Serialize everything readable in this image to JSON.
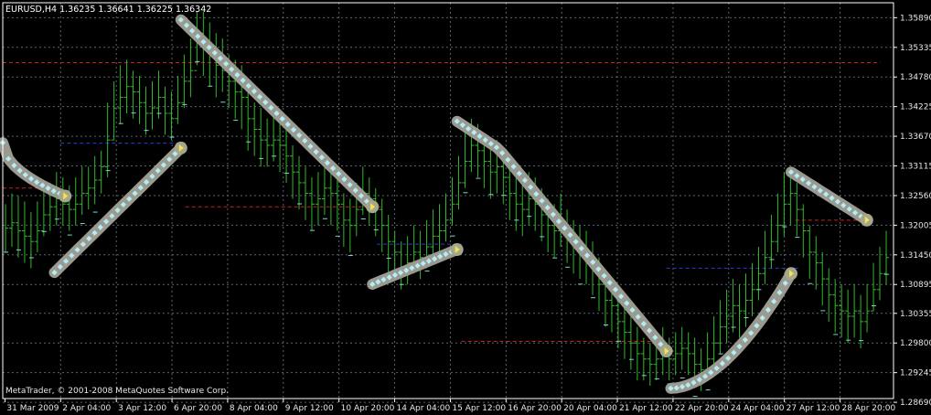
{
  "window": {
    "symbol_line": "EURUSD,H4  1.36235 1.36641 1.36225 1.36342",
    "copyright": "MetaTrader, © 2001-2008 MetaQuotes Software Corp."
  },
  "colors": {
    "background": "#000000",
    "grid": "#5a6470",
    "candles": "#31b92a",
    "frame": "#ffffff",
    "text": "#e8e8e8",
    "ma_dash": "#7fd6d4",
    "level_red": "#d21d1d",
    "level_blue": "#2b3bd8",
    "curve_body": "#9a9a90",
    "curve_dot": "#b3ecf5"
  },
  "chart_data": {
    "type": "candlestick",
    "symbol": "EURUSD",
    "timeframe": "H4",
    "ohlc_latest": {
      "open": 1.36235,
      "high": 1.36641,
      "low": 1.36225,
      "close": 1.36342
    },
    "ylim": [
      1.2876,
      1.3617
    ],
    "y_ticks": [
      "1.35890",
      "1.35335",
      "1.34780",
      "1.34225",
      "1.33670",
      "1.33115",
      "1.32560",
      "1.32005",
      "1.31450",
      "1.30895",
      "1.30355",
      "1.29800",
      "1.29245",
      "1.28690"
    ],
    "x_ticks": [
      "31 Mar 2009",
      "2 Apr 04:00",
      "3 Apr 12:00",
      "6 Apr 20:00",
      "8 Apr 04:00",
      "9 Apr 12:00",
      "10 Apr 20:00",
      "14 Apr 04:00",
      "15 Apr 12:00",
      "16 Apr 20:00",
      "20 Apr 04:00",
      "21 Apr 12:00",
      "22 Apr 20:00",
      "24 Apr 04:00",
      "27 Apr 12:00",
      "28 Apr 20:00"
    ],
    "grid": true,
    "bars": [
      {
        "c": 1.3195,
        "h": 1.324,
        "l": 1.315
      },
      {
        "c": 1.3205,
        "h": 1.326,
        "l": 1.316
      },
      {
        "c": 1.319,
        "h": 1.3255,
        "l": 1.314
      },
      {
        "c": 1.318,
        "h": 1.3245,
        "l": 1.313
      },
      {
        "c": 1.317,
        "h": 1.3225,
        "l": 1.312
      },
      {
        "c": 1.319,
        "h": 1.3245,
        "l": 1.315
      },
      {
        "c": 1.322,
        "h": 1.3265,
        "l": 1.318
      },
      {
        "c": 1.3235,
        "h": 1.328,
        "l": 1.319
      },
      {
        "c": 1.325,
        "h": 1.33,
        "l": 1.32
      },
      {
        "c": 1.324,
        "h": 1.329,
        "l": 1.32
      },
      {
        "c": 1.323,
        "h": 1.3275,
        "l": 1.319
      },
      {
        "c": 1.324,
        "h": 1.329,
        "l": 1.32
      },
      {
        "c": 1.326,
        "h": 1.331,
        "l": 1.322
      },
      {
        "c": 1.327,
        "h": 1.331,
        "l": 1.323
      },
      {
        "c": 1.3285,
        "h": 1.333,
        "l": 1.324
      },
      {
        "c": 1.331,
        "h": 1.334,
        "l": 1.326
      },
      {
        "c": 1.336,
        "h": 1.343,
        "l": 1.329
      },
      {
        "c": 1.342,
        "h": 1.347,
        "l": 1.336
      },
      {
        "c": 1.344,
        "h": 1.35,
        "l": 1.339
      },
      {
        "c": 1.346,
        "h": 1.351,
        "l": 1.341
      },
      {
        "c": 1.345,
        "h": 1.349,
        "l": 1.34
      },
      {
        "c": 1.343,
        "h": 1.348,
        "l": 1.339
      },
      {
        "c": 1.341,
        "h": 1.346,
        "l": 1.337
      },
      {
        "c": 1.342,
        "h": 1.347,
        "l": 1.338
      },
      {
        "c": 1.344,
        "h": 1.349,
        "l": 1.34
      },
      {
        "c": 1.341,
        "h": 1.346,
        "l": 1.337
      },
      {
        "c": 1.34,
        "h": 1.345,
        "l": 1.336
      },
      {
        "c": 1.343,
        "h": 1.348,
        "l": 1.339
      },
      {
        "c": 1.347,
        "h": 1.352,
        "l": 1.342
      },
      {
        "c": 1.349,
        "h": 1.355,
        "l": 1.344
      },
      {
        "c": 1.356,
        "h": 1.36,
        "l": 1.35
      },
      {
        "c": 1.354,
        "h": 1.36,
        "l": 1.348
      },
      {
        "c": 1.352,
        "h": 1.358,
        "l": 1.346
      },
      {
        "c": 1.35,
        "h": 1.356,
        "l": 1.344
      },
      {
        "c": 1.349,
        "h": 1.355,
        "l": 1.345
      },
      {
        "c": 1.347,
        "h": 1.352,
        "l": 1.342
      },
      {
        "c": 1.345,
        "h": 1.351,
        "l": 1.34
      },
      {
        "c": 1.344,
        "h": 1.35,
        "l": 1.338
      },
      {
        "c": 1.34,
        "h": 1.346,
        "l": 1.334
      },
      {
        "c": 1.338,
        "h": 1.343,
        "l": 1.333
      },
      {
        "c": 1.336,
        "h": 1.342,
        "l": 1.331
      },
      {
        "c": 1.335,
        "h": 1.34,
        "l": 1.331
      },
      {
        "c": 1.336,
        "h": 1.342,
        "l": 1.332
      },
      {
        "c": 1.335,
        "h": 1.341,
        "l": 1.33
      },
      {
        "c": 1.333,
        "h": 1.338,
        "l": 1.328
      },
      {
        "c": 1.33,
        "h": 1.335,
        "l": 1.325
      },
      {
        "c": 1.328,
        "h": 1.333,
        "l": 1.323
      },
      {
        "c": 1.326,
        "h": 1.331,
        "l": 1.321
      },
      {
        "c": 1.324,
        "h": 1.329,
        "l": 1.319
      },
      {
        "c": 1.325,
        "h": 1.33,
        "l": 1.32
      },
      {
        "c": 1.327,
        "h": 1.331,
        "l": 1.322
      },
      {
        "c": 1.326,
        "h": 1.33,
        "l": 1.32
      },
      {
        "c": 1.324,
        "h": 1.329,
        "l": 1.319
      },
      {
        "c": 1.321,
        "h": 1.326,
        "l": 1.316
      },
      {
        "c": 1.32,
        "h": 1.325,
        "l": 1.315
      },
      {
        "c": 1.323,
        "h": 1.328,
        "l": 1.318
      },
      {
        "c": 1.326,
        "h": 1.331,
        "l": 1.322
      },
      {
        "c": 1.325,
        "h": 1.329,
        "l": 1.32
      },
      {
        "c": 1.323,
        "h": 1.327,
        "l": 1.318
      },
      {
        "c": 1.32,
        "h": 1.325,
        "l": 1.315
      },
      {
        "c": 1.317,
        "h": 1.322,
        "l": 1.311
      },
      {
        "c": 1.315,
        "h": 1.319,
        "l": 1.31
      },
      {
        "c": 1.312,
        "h": 1.317,
        "l": 1.308
      },
      {
        "c": 1.313,
        "h": 1.318,
        "l": 1.309
      },
      {
        "c": 1.315,
        "h": 1.32,
        "l": 1.311
      },
      {
        "c": 1.314,
        "h": 1.319,
        "l": 1.31
      },
      {
        "c": 1.316,
        "h": 1.321,
        "l": 1.312
      },
      {
        "c": 1.318,
        "h": 1.323,
        "l": 1.314
      },
      {
        "c": 1.319,
        "h": 1.324,
        "l": 1.315
      },
      {
        "c": 1.321,
        "h": 1.326,
        "l": 1.317
      },
      {
        "c": 1.324,
        "h": 1.329,
        "l": 1.32
      },
      {
        "c": 1.328,
        "h": 1.333,
        "l": 1.323
      },
      {
        "c": 1.332,
        "h": 1.338,
        "l": 1.327
      },
      {
        "c": 1.335,
        "h": 1.34,
        "l": 1.33
      },
      {
        "c": 1.334,
        "h": 1.339,
        "l": 1.329
      },
      {
        "c": 1.332,
        "h": 1.337,
        "l": 1.327
      },
      {
        "c": 1.33,
        "h": 1.335,
        "l": 1.325
      },
      {
        "c": 1.331,
        "h": 1.336,
        "l": 1.326
      },
      {
        "c": 1.329,
        "h": 1.334,
        "l": 1.324
      },
      {
        "c": 1.326,
        "h": 1.331,
        "l": 1.321
      },
      {
        "c": 1.324,
        "h": 1.329,
        "l": 1.319
      },
      {
        "c": 1.323,
        "h": 1.328,
        "l": 1.318
      },
      {
        "c": 1.325,
        "h": 1.33,
        "l": 1.32
      },
      {
        "c": 1.324,
        "h": 1.329,
        "l": 1.319
      },
      {
        "c": 1.322,
        "h": 1.327,
        "l": 1.317
      },
      {
        "c": 1.32,
        "h": 1.325,
        "l": 1.315
      },
      {
        "c": 1.319,
        "h": 1.324,
        "l": 1.314
      },
      {
        "c": 1.32,
        "h": 1.326,
        "l": 1.316
      },
      {
        "c": 1.318,
        "h": 1.323,
        "l": 1.313
      },
      {
        "c": 1.316,
        "h": 1.321,
        "l": 1.311
      },
      {
        "c": 1.315,
        "h": 1.32,
        "l": 1.31
      },
      {
        "c": 1.314,
        "h": 1.319,
        "l": 1.309
      },
      {
        "c": 1.312,
        "h": 1.317,
        "l": 1.307
      },
      {
        "c": 1.309,
        "h": 1.314,
        "l": 1.304
      },
      {
        "c": 1.306,
        "h": 1.311,
        "l": 1.301
      },
      {
        "c": 1.305,
        "h": 1.31,
        "l": 1.3
      },
      {
        "c": 1.302,
        "h": 1.307,
        "l": 1.297
      },
      {
        "c": 1.3,
        "h": 1.305,
        "l": 1.295
      },
      {
        "c": 1.298,
        "h": 1.303,
        "l": 1.293
      },
      {
        "c": 1.296,
        "h": 1.301,
        "l": 1.291
      },
      {
        "c": 1.295,
        "h": 1.299,
        "l": 1.291
      },
      {
        "c": 1.294,
        "h": 1.298,
        "l": 1.29
      },
      {
        "c": 1.295,
        "h": 1.3,
        "l": 1.291
      },
      {
        "c": 1.296,
        "h": 1.301,
        "l": 1.292
      },
      {
        "c": 1.295,
        "h": 1.299,
        "l": 1.291
      },
      {
        "c": 1.296,
        "h": 1.3,
        "l": 1.292
      },
      {
        "c": 1.297,
        "h": 1.301,
        "l": 1.293
      },
      {
        "c": 1.296,
        "h": 1.3,
        "l": 1.292
      },
      {
        "c": 1.294,
        "h": 1.299,
        "l": 1.29
      },
      {
        "c": 1.293,
        "h": 1.297,
        "l": 1.289
      },
      {
        "c": 1.295,
        "h": 1.3,
        "l": 1.291
      },
      {
        "c": 1.298,
        "h": 1.303,
        "l": 1.294
      },
      {
        "c": 1.301,
        "h": 1.306,
        "l": 1.296
      },
      {
        "c": 1.303,
        "h": 1.308,
        "l": 1.298
      },
      {
        "c": 1.305,
        "h": 1.31,
        "l": 1.3
      },
      {
        "c": 1.304,
        "h": 1.309,
        "l": 1.299
      },
      {
        "c": 1.306,
        "h": 1.311,
        "l": 1.301
      },
      {
        "c": 1.308,
        "h": 1.313,
        "l": 1.303
      },
      {
        "c": 1.311,
        "h": 1.316,
        "l": 1.306
      },
      {
        "c": 1.314,
        "h": 1.319,
        "l": 1.309
      },
      {
        "c": 1.317,
        "h": 1.322,
        "l": 1.312
      },
      {
        "c": 1.32,
        "h": 1.326,
        "l": 1.315
      },
      {
        "c": 1.324,
        "h": 1.33,
        "l": 1.318
      },
      {
        "c": 1.326,
        "h": 1.331,
        "l": 1.32
      },
      {
        "c": 1.323,
        "h": 1.328,
        "l": 1.318
      },
      {
        "c": 1.319,
        "h": 1.324,
        "l": 1.314
      },
      {
        "c": 1.315,
        "h": 1.32,
        "l": 1.31
      },
      {
        "c": 1.313,
        "h": 1.318,
        "l": 1.308
      },
      {
        "c": 1.31,
        "h": 1.315,
        "l": 1.305
      },
      {
        "c": 1.307,
        "h": 1.312,
        "l": 1.302
      },
      {
        "c": 1.305,
        "h": 1.31,
        "l": 1.3
      },
      {
        "c": 1.304,
        "h": 1.309,
        "l": 1.299
      },
      {
        "c": 1.303,
        "h": 1.308,
        "l": 1.298
      },
      {
        "c": 1.304,
        "h": 1.309,
        "l": 1.299
      },
      {
        "c": 1.302,
        "h": 1.307,
        "l": 1.297
      },
      {
        "c": 1.304,
        "h": 1.309,
        "l": 1.3
      },
      {
        "c": 1.308,
        "h": 1.313,
        "l": 1.304
      },
      {
        "c": 1.311,
        "h": 1.316,
        "l": 1.306
      },
      {
        "c": 1.314,
        "h": 1.319,
        "l": 1.309
      }
    ],
    "levels": [
      {
        "color": "red",
        "price": 1.3505,
        "from": 0.0,
        "to": 0.985
      },
      {
        "color": "blue",
        "price": 1.3354,
        "from": 0.065,
        "to": 0.205
      },
      {
        "color": "red",
        "price": 1.327,
        "from": 0.0,
        "to": 0.045
      },
      {
        "color": "red",
        "price": 1.3235,
        "from": 0.205,
        "to": 0.425
      },
      {
        "color": "blue",
        "price": 1.3165,
        "from": 0.42,
        "to": 0.515
      },
      {
        "color": "red",
        "price": 1.2983,
        "from": 0.515,
        "to": 0.745
      },
      {
        "color": "blue",
        "price": 1.312,
        "from": 0.745,
        "to": 0.895
      },
      {
        "color": "red",
        "price": 1.321,
        "from": 0.89,
        "to": 0.975
      }
    ],
    "curves": [
      {
        "from": 0.0,
        "to": 0.07,
        "start": 1.3355,
        "end": 1.3255,
        "shape": "flat_down"
      },
      {
        "from": 0.058,
        "to": 0.2,
        "start": 1.3112,
        "end": 1.3345,
        "shape": "up"
      },
      {
        "from": 0.2,
        "to": 0.415,
        "start": 1.3585,
        "end": 1.3235,
        "shape": "down"
      },
      {
        "from": 0.415,
        "to": 0.51,
        "start": 1.309,
        "end": 1.3155,
        "shape": "up"
      },
      {
        "from": 0.51,
        "to": 0.745,
        "start": 1.3395,
        "end": 1.2965,
        "shape": "arc_down"
      },
      {
        "from": 0.75,
        "to": 0.885,
        "start": 1.2895,
        "end": 1.311,
        "shape": "arc_up"
      },
      {
        "from": 0.885,
        "to": 0.97,
        "start": 1.33,
        "end": 1.321,
        "shape": "down"
      }
    ]
  }
}
